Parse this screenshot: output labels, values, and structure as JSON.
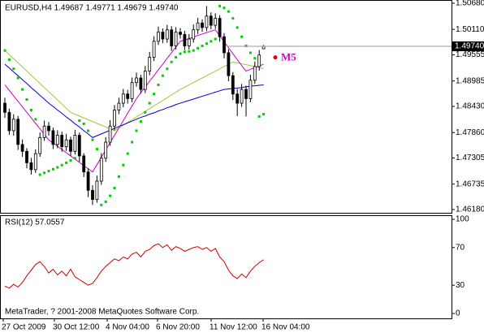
{
  "chart_data": [
    {
      "type": "candlestick",
      "header": "EURUSD,H4  1.49687 1.49771 1.49679 1.49740",
      "price_label": "1.49740",
      "price_value": 1.4974,
      "annotation": "M5",
      "annotation_value": 1.495,
      "copyright": "MetaTrader, ? 2001-2008 MetaQuotes Software Corp.",
      "ylim": [
        1.4618,
        1.5068
      ],
      "yticks": [
        {
          "value": 1.5068,
          "label": "1.50680"
        },
        {
          "value": 1.5011,
          "label": "1.50110"
        },
        {
          "value": 1.49555,
          "label": "1.49555"
        },
        {
          "value": 1.48985,
          "label": "1.48985"
        },
        {
          "value": 1.4843,
          "label": "1.48430"
        },
        {
          "value": 1.4786,
          "label": "1.47860"
        },
        {
          "value": 1.47305,
          "label": "1.47305"
        },
        {
          "value": 1.46735,
          "label": "1.46735"
        },
        {
          "value": 1.4618,
          "label": "1.46180"
        }
      ],
      "open": [
        1.485,
        1.483,
        1.479,
        1.4815,
        1.476,
        1.4745,
        1.472,
        1.4705,
        1.474,
        1.4775,
        1.48,
        1.479,
        1.476,
        1.478,
        1.4755,
        1.477,
        1.4745,
        1.478,
        1.4735,
        1.47,
        1.466,
        1.464,
        1.468,
        1.473,
        1.4765,
        1.48,
        1.4835,
        1.485,
        1.487,
        1.486,
        1.4895,
        1.4905,
        1.488,
        1.492,
        1.495,
        1.4985,
        1.5005,
        1.499,
        1.501,
        1.4975,
        1.5005,
        1.5,
        1.4975,
        1.499,
        1.501,
        1.5025,
        1.5015,
        1.504,
        1.502,
        1.5035,
        1.4995,
        1.496,
        1.491,
        1.487,
        1.485,
        1.488,
        1.486,
        1.49,
        1.493,
        1.49687
      ],
      "high": [
        1.4862,
        1.4838,
        1.4826,
        1.4822,
        1.4771,
        1.4752,
        1.4731,
        1.4749,
        1.4786,
        1.4812,
        1.4809,
        1.4797,
        1.4791,
        1.4788,
        1.4783,
        1.4777,
        1.4792,
        1.4786,
        1.4741,
        1.4708,
        1.4671,
        1.4692,
        1.4741,
        1.4776,
        1.4813,
        1.4846,
        1.4862,
        1.4881,
        1.4879,
        1.4906,
        1.4917,
        1.4912,
        1.4931,
        1.4962,
        1.4996,
        1.5017,
        1.5013,
        1.5021,
        1.5018,
        1.5016,
        1.5014,
        1.5008,
        1.5001,
        1.5022,
        1.5036,
        1.5033,
        1.5062,
        1.5048,
        1.5046,
        1.5042,
        1.5003,
        1.4968,
        1.4918,
        1.4881,
        1.4892,
        1.4888,
        1.4912,
        1.4941,
        1.4966,
        1.49771
      ],
      "low": [
        1.4818,
        1.4781,
        1.4779,
        1.4748,
        1.4733,
        1.4708,
        1.4694,
        1.4698,
        1.4733,
        1.4768,
        1.4779,
        1.475,
        1.4752,
        1.4744,
        1.4746,
        1.4735,
        1.4738,
        1.4722,
        1.4689,
        1.4645,
        1.4628,
        1.4633,
        1.4672,
        1.4722,
        1.4757,
        1.4791,
        1.4826,
        1.4841,
        1.4849,
        1.4852,
        1.4886,
        1.4871,
        1.4872,
        1.4911,
        1.4942,
        1.4977,
        1.4981,
        1.4982,
        1.4964,
        1.4967,
        1.4991,
        1.4966,
        1.4967,
        1.4982,
        1.5001,
        1.5006,
        1.5007,
        1.5011,
        1.5012,
        1.4984,
        1.4948,
        1.4898,
        1.4857,
        1.4822,
        1.4842,
        1.4821,
        1.4852,
        1.4892,
        1.4921,
        1.49679
      ],
      "close": [
        1.483,
        1.479,
        1.4815,
        1.476,
        1.4745,
        1.472,
        1.4705,
        1.474,
        1.4775,
        1.48,
        1.479,
        1.476,
        1.478,
        1.4755,
        1.477,
        1.4745,
        1.478,
        1.4735,
        1.47,
        1.466,
        1.464,
        1.468,
        1.473,
        1.4765,
        1.48,
        1.4835,
        1.485,
        1.487,
        1.486,
        1.4895,
        1.4905,
        1.488,
        1.492,
        1.495,
        1.4985,
        1.5005,
        1.499,
        1.501,
        1.4975,
        1.5005,
        1.5,
        1.4975,
        1.499,
        1.501,
        1.5025,
        1.5015,
        1.504,
        1.502,
        1.5035,
        1.4995,
        1.496,
        1.491,
        1.487,
        1.485,
        1.488,
        1.486,
        1.49,
        1.493,
        1.4955,
        1.4974
      ],
      "series": [
        {
          "color": "#9acd32",
          "values": [
            1.4965,
            1.4956,
            1.4947,
            1.4938,
            1.4929,
            1.492,
            1.4911,
            1.4902,
            1.4893,
            1.4884,
            1.4875,
            1.4866,
            1.4857,
            1.4848,
            1.4839,
            1.483,
            1.4826,
            1.4822,
            1.4818,
            1.4814,
            1.481,
            1.4806,
            1.4802,
            1.4798,
            1.4794,
            1.479,
            1.4796,
            1.4802,
            1.4808,
            1.4814,
            1.482,
            1.4826,
            1.4832,
            1.4838,
            1.4844,
            1.485,
            1.4856,
            1.4862,
            1.4868,
            1.4874,
            1.488,
            1.4885,
            1.489,
            1.4895,
            1.49,
            1.4905,
            1.491,
            1.4915,
            1.492,
            1.4925,
            1.493,
            1.4935,
            1.494,
            1.4938,
            1.4936,
            1.4934,
            1.4932,
            1.493,
            1.4928,
            1.4925
          ]
        },
        {
          "color": "#0000cc",
          "values": [
            1.4935,
            1.4927,
            1.4918,
            1.491,
            1.4901,
            1.4893,
            1.4884,
            1.4876,
            1.4867,
            1.4859,
            1.485,
            1.4843,
            1.4835,
            1.4828,
            1.482,
            1.4813,
            1.4805,
            1.4798,
            1.479,
            1.4783,
            1.4775,
            1.4779,
            1.4783,
            1.4787,
            1.4791,
            1.4795,
            1.4799,
            1.4803,
            1.4807,
            1.4811,
            1.4815,
            1.4819,
            1.4822,
            1.4826,
            1.4829,
            1.4833,
            1.4836,
            1.484,
            1.4843,
            1.4847,
            1.485,
            1.4853,
            1.4856,
            1.4859,
            1.4862,
            1.4865,
            1.4868,
            1.4871,
            1.4874,
            1.4877,
            1.488,
            1.4881,
            1.4882,
            1.4883,
            1.4884,
            1.4886,
            1.4887,
            1.4888,
            1.4889,
            1.489
          ]
        },
        {
          "color": "#cc00cc",
          "values": [
            1.489,
            1.4878,
            1.4866,
            1.4854,
            1.4842,
            1.483,
            1.4818,
            1.4806,
            1.4794,
            1.4782,
            1.477,
            1.4763,
            1.4756,
            1.4749,
            1.4742,
            1.4735,
            1.4728,
            1.4721,
            1.4714,
            1.4707,
            1.47,
            1.4716,
            1.4732,
            1.4748,
            1.4764,
            1.478,
            1.4796,
            1.4812,
            1.4828,
            1.4844,
            1.486,
            1.4873,
            1.4885,
            1.4898,
            1.491,
            1.4923,
            1.4935,
            1.4948,
            1.496,
            1.4973,
            1.4985,
            1.4988,
            1.4991,
            1.4994,
            1.4998,
            1.5001,
            1.5004,
            1.5007,
            1.501,
            1.4997,
            1.4984,
            1.4971,
            1.4958,
            1.4945,
            1.4932,
            1.492,
            1.4924,
            1.4928,
            1.4931,
            1.4935
          ]
        }
      ],
      "sar_color": "#00cc00",
      "sar": [
        1.4965,
        1.4945,
        1.4925,
        1.4905,
        1.488,
        1.4858,
        1.4835,
        1.4815,
        1.4694,
        1.4698,
        1.4702,
        1.4706,
        1.471,
        1.4715,
        1.472,
        1.4725,
        1.473,
        1.4812,
        1.4805,
        1.479,
        1.477,
        1.475,
        1.4628,
        1.4635,
        1.4648,
        1.4665,
        1.469,
        1.4715,
        1.474,
        1.4765,
        1.479,
        1.481,
        1.483,
        1.485,
        1.487,
        1.489,
        1.491,
        1.4925,
        1.494,
        1.495,
        1.4958,
        1.4962,
        1.4963,
        1.4965,
        1.497,
        1.4975,
        1.498,
        1.4985,
        1.499,
        1.5062,
        1.5058,
        1.505,
        1.5035,
        1.5015,
        1.4995,
        1.4975,
        1.496,
        1.4948,
        1.4821,
        1.4826
      ]
    },
    {
      "type": "line",
      "title": "RSI(12) 57.0557",
      "color": "#cc0000",
      "ylim": [
        0,
        100
      ],
      "yticks": [
        100,
        70,
        30,
        0
      ],
      "values": [
        29,
        27,
        31,
        28,
        33,
        40,
        46,
        52,
        55,
        50,
        43,
        47,
        41,
        45,
        40,
        47,
        39,
        36,
        33,
        30,
        32,
        38,
        45,
        50,
        54,
        58,
        56,
        60,
        58,
        63,
        65,
        60,
        66,
        68,
        72,
        74,
        70,
        73,
        67,
        71,
        69,
        66,
        68,
        70,
        71,
        68,
        70,
        66,
        69,
        60,
        55,
        46,
        40,
        37,
        42,
        38,
        45,
        50,
        54,
        57.0557
      ],
      "x_labels": [
        "27 Oct 2009",
        "30 Oct 12:00",
        "4 Nov 04:00",
        "6 Nov 20:00",
        "11 Nov 12:00",
        "16 Nov 04:00"
      ]
    }
  ]
}
